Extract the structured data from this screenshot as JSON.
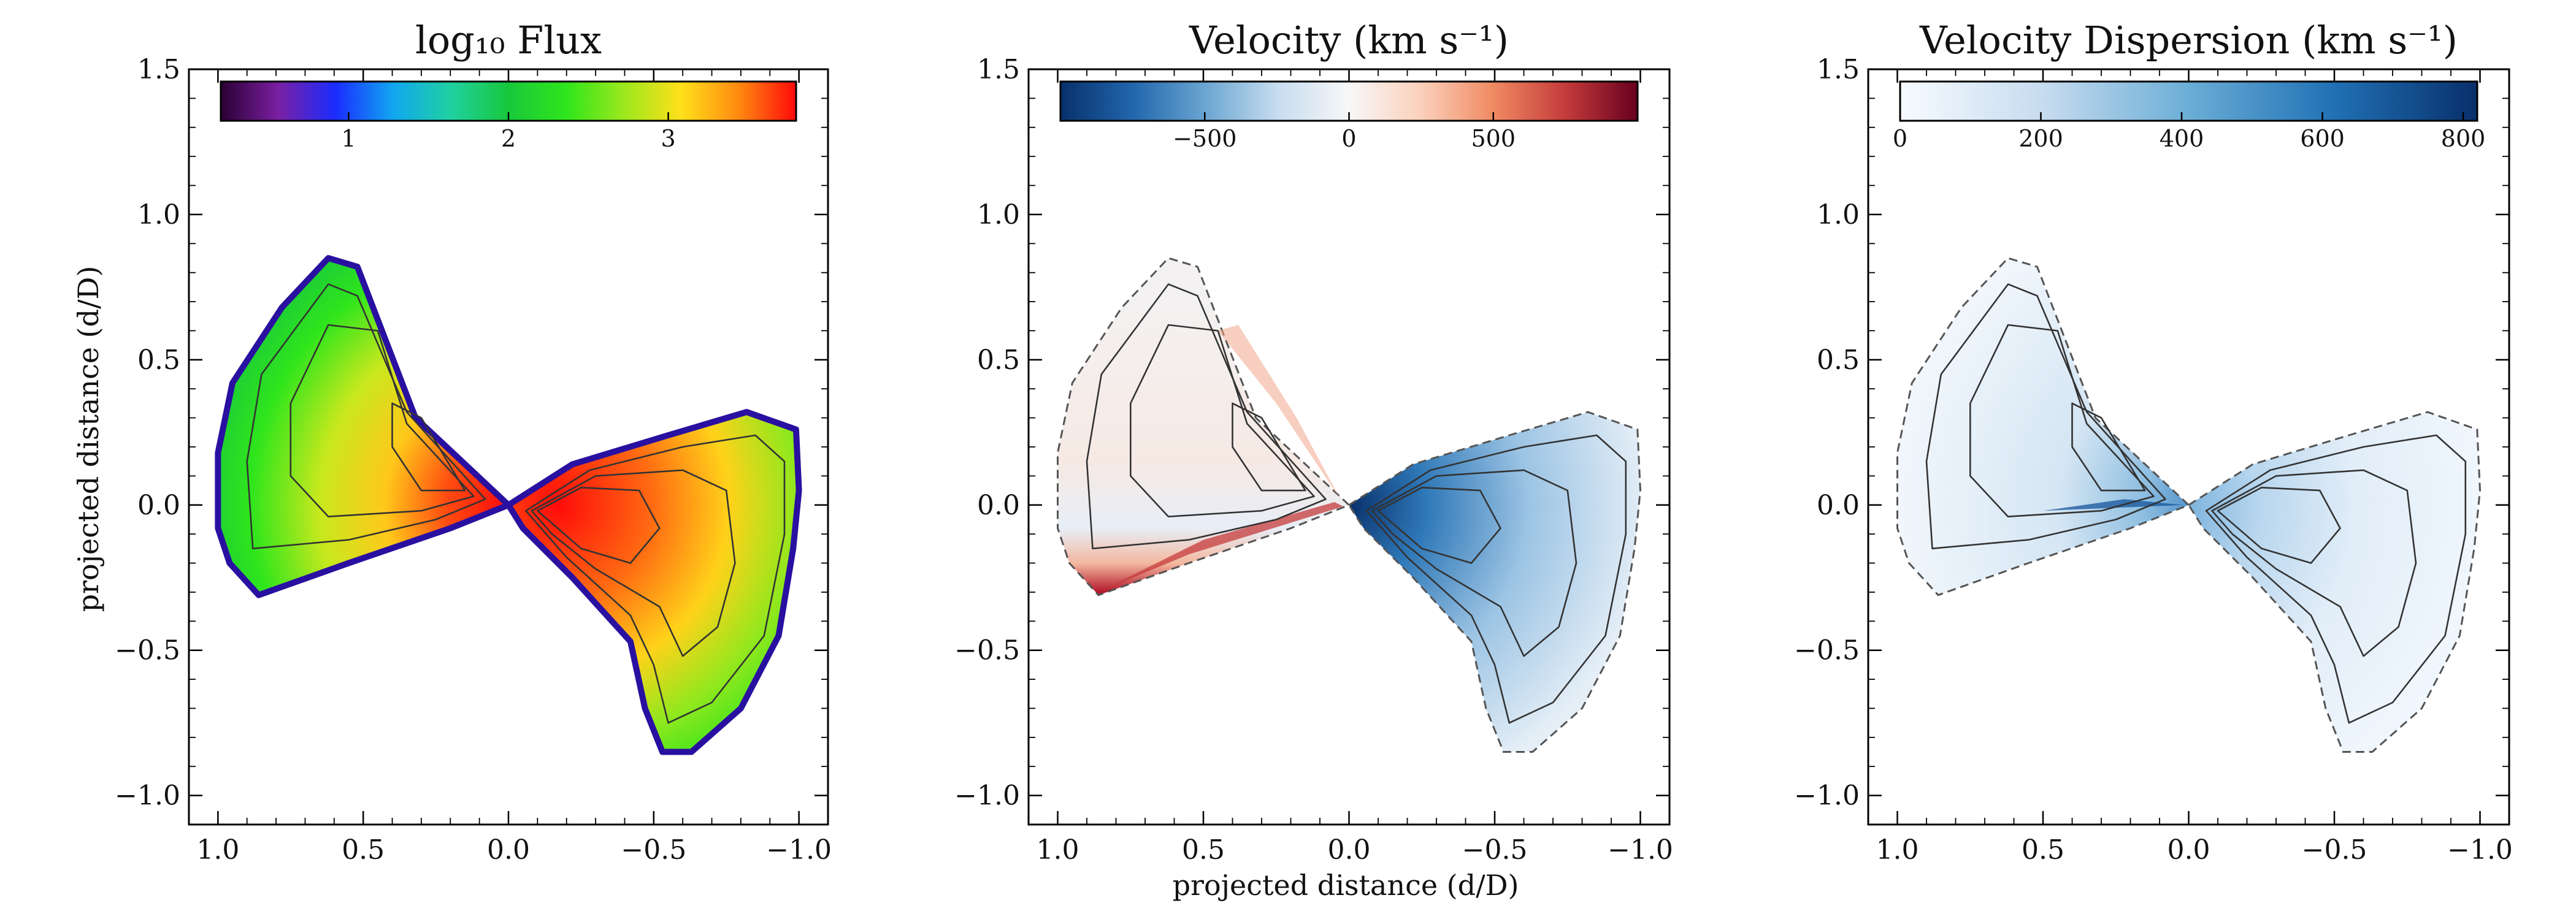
{
  "figure": {
    "shared_xlabel": "projected distance (d/D)",
    "shared_ylabel": "projected distance (d/D)"
  },
  "chart_data": [
    {
      "type": "heatmap",
      "title": "log₁₀ Flux",
      "xlabel": "",
      "ylabel": "projected distance (d/D)",
      "xlim": [
        1.1,
        -1.1
      ],
      "ylim": [
        -1.1,
        1.5
      ],
      "xticks": [
        1.0,
        0.5,
        0.0,
        -0.5,
        -1.0
      ],
      "xtick_labels": [
        "1.0",
        "0.5",
        "0.0",
        "−0.5",
        "−1.0"
      ],
      "yticks": [
        1.5,
        1.0,
        0.5,
        0.0,
        -0.5,
        -1.0
      ],
      "ytick_labels": [
        "1.5",
        "1.0",
        "0.5",
        "0.0",
        "−0.5",
        "−1.0"
      ],
      "colormap": "jet",
      "colorbar": {
        "range": [
          0.2,
          3.8
        ],
        "ticks": [
          1,
          2,
          3
        ],
        "tick_labels": [
          "1",
          "2",
          "3"
        ],
        "colors": [
          "#2a0033",
          "#7a1fa2",
          "#1a2cff",
          "#11a7f0",
          "#1fd0a0",
          "#18c83c",
          "#2fe51c",
          "#9be81d",
          "#ffe01a",
          "#ff8a10",
          "#ff0a0a"
        ]
      },
      "contour_levels": [
        1.5,
        2.2,
        2.9,
        3.4
      ],
      "description": "bipolar wind: upper-left lobe and lower-right lobe, brightest near the origin"
    },
    {
      "type": "heatmap",
      "title": "Velocity (km s⁻¹)",
      "xlabel": "projected distance (d/D)",
      "ylabel": "",
      "xlim": [
        1.1,
        -1.1
      ],
      "ylim": [
        -1.1,
        1.5
      ],
      "xticks": [
        1.0,
        0.5,
        0.0,
        -0.5,
        -1.0
      ],
      "xtick_labels": [
        "1.0",
        "0.5",
        "0.0",
        "−0.5",
        "−1.0"
      ],
      "yticks": [
        1.5,
        1.0,
        0.5,
        0.0,
        -0.5,
        -1.0
      ],
      "ytick_labels": [
        "1.5",
        "1.0",
        "0.5",
        "0.0",
        "−0.5",
        "−1.0"
      ],
      "colormap": "RdBu_r",
      "colorbar": {
        "range": [
          -1000,
          1000
        ],
        "ticks": [
          -500,
          0,
          500
        ],
        "tick_labels": [
          "−500",
          "0",
          "500"
        ],
        "colors": [
          "#08306b",
          "#2166ac",
          "#6aa5d1",
          "#c6dcef",
          "#f7f7f7",
          "#fbd0bb",
          "#ef8a62",
          "#c53b3b",
          "#67001f"
        ]
      },
      "description": "approaching (blue) gas near the inner right lobe, receding (red) gas along the lower edge of the left lobe"
    },
    {
      "type": "heatmap",
      "title": "Velocity Dispersion (km s⁻¹)",
      "xlabel": "",
      "ylabel": "",
      "xlim": [
        1.1,
        -1.1
      ],
      "ylim": [
        -1.1,
        1.5
      ],
      "xticks": [
        1.0,
        0.5,
        0.0,
        -0.5,
        -1.0
      ],
      "xtick_labels": [
        "1.0",
        "0.5",
        "0.0",
        "−0.5",
        "−1.0"
      ],
      "yticks": [
        1.5,
        1.0,
        0.5,
        0.0,
        -0.5,
        -1.0
      ],
      "ytick_labels": [
        "1.5",
        "1.0",
        "0.5",
        "0.0",
        "−0.5",
        "−1.0"
      ],
      "colormap": "Blues",
      "colorbar": {
        "range": [
          0,
          820
        ],
        "ticks": [
          0,
          200,
          400,
          600,
          800
        ],
        "tick_labels": [
          "0",
          "200",
          "400",
          "600",
          "800"
        ],
        "colors": [
          "#f7fbff",
          "#c6dbef",
          "#6baed6",
          "#2171b5",
          "#08306b"
        ]
      },
      "description": "dispersion highest along the inner axis of each lobe near the origin"
    }
  ]
}
